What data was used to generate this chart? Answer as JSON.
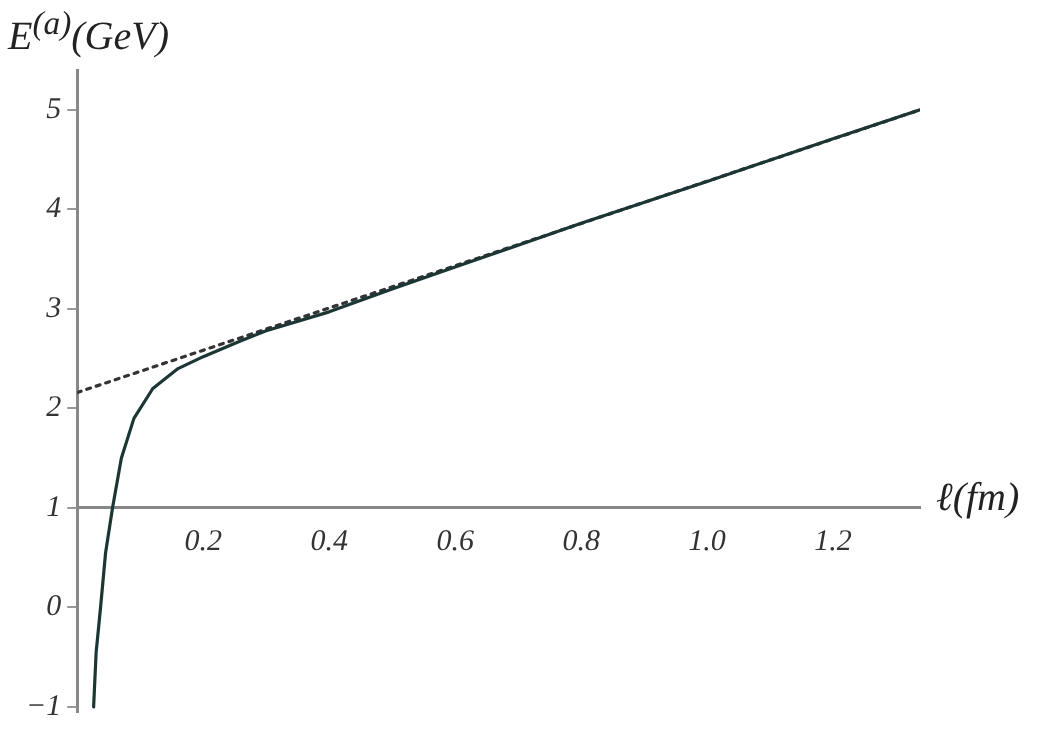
{
  "chart_data": {
    "type": "line",
    "xlabel": "ℓ(fm)",
    "ylabel": "E$^{(a)}$(GeV)",
    "xlim": [
      0,
      1.338
    ],
    "ylim": [
      -1.05,
      5.4
    ],
    "xticks": [
      0.2,
      0.4,
      0.6,
      0.8,
      {
        "value": 1,
        "label": "1.0"
      },
      1.2
    ],
    "yticks": [
      {
        "value": -1,
        "label": "−1"
      },
      0,
      1,
      2,
      3,
      4,
      5
    ],
    "grid": false,
    "legend": false,
    "marker": "none",
    "series": [
      {
        "color": "#1c3535",
        "line_style": "solid",
        "x": [
          0.026,
          0.03,
          0.037,
          0.045,
          0.056,
          0.07,
          0.09,
          0.12,
          0.16,
          0.2,
          0.26,
          0.3,
          0.4,
          0.5,
          0.6,
          0.7,
          0.8,
          1.0,
          1.2,
          1.338
        ],
        "values": [
          -1,
          -0.45,
          0,
          0.55,
          1.0,
          1.5,
          1.9,
          2.2,
          2.4,
          2.52,
          2.68,
          2.78,
          2.97,
          3.2,
          3.42,
          3.64,
          3.86,
          4.28,
          4.71,
          5.0
        ]
      },
      {
        "color": "#333333",
        "line_style": "dotted",
        "x": [
          0,
          1.338
        ],
        "values": [
          2.16,
          5.0
        ]
      }
    ]
  }
}
